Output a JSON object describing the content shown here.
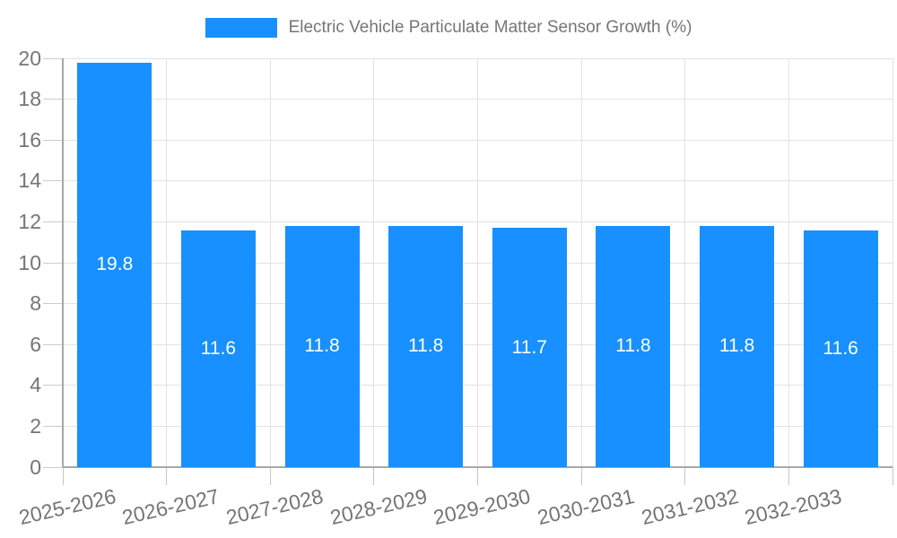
{
  "chart_data": {
    "type": "bar",
    "title": "Electric Vehicle Particulate Matter Sensor Growth (%)",
    "categories": [
      "2025-2026",
      "2026-2027",
      "2027-2028",
      "2028-2029",
      "2029-2030",
      "2030-2031",
      "2031-2032",
      "2032-2033"
    ],
    "values": [
      19.8,
      11.6,
      11.8,
      11.8,
      11.7,
      11.8,
      11.8,
      11.6
    ],
    "value_labels": [
      "19.8",
      "11.6",
      "11.8",
      "11.8",
      "11.7",
      "11.8",
      "11.8",
      "11.6"
    ],
    "xlabel": "",
    "ylabel": "",
    "ylim": [
      0,
      20
    ],
    "ytick_step": 2,
    "ytick_labels": [
      "0",
      "2",
      "4",
      "6",
      "8",
      "10",
      "12",
      "14",
      "16",
      "18",
      "20"
    ],
    "grid": true,
    "legend_position": "top-center",
    "colors": {
      "bar": "#1890ff",
      "bar_label": "#ffffff",
      "axis_text": "#757575",
      "legend_text": "#757575",
      "gridline": "#e3e3e3",
      "axis_line": "#a8a8a8",
      "background": "#ffffff"
    }
  }
}
